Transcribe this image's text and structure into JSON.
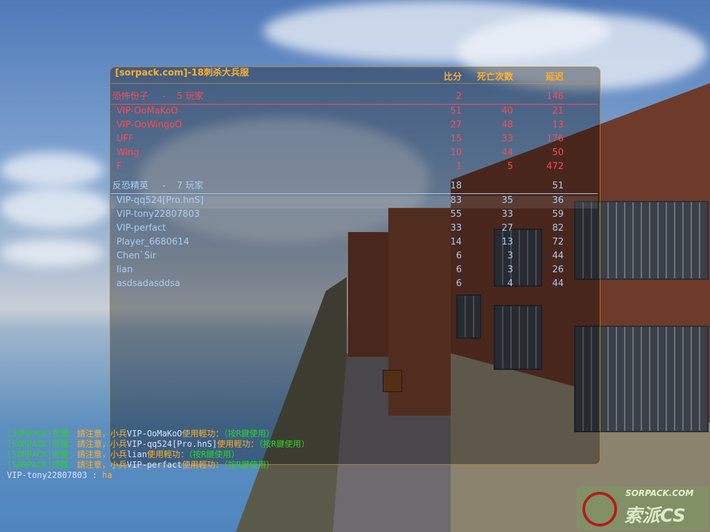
{
  "scoreboard": {
    "title": "[sorpack.com]-18刺杀大兵服",
    "columns": {
      "score": "比分",
      "deaths": "死亡次数",
      "latency": "延迟"
    },
    "teams": [
      {
        "name": "恐怖份子",
        "sep": "-",
        "players_label": "5 玩家",
        "score": "2",
        "latency": "146",
        "color": "#ff4a50",
        "players": [
          {
            "name": "VIP-OoMaKoO",
            "score": "51",
            "deaths": "40",
            "latency": "21"
          },
          {
            "name": "VIP-OoWingoO",
            "score": "27",
            "deaths": "48",
            "latency": "13"
          },
          {
            "name": "UFF",
            "score": "15",
            "deaths": "33",
            "latency": "176"
          },
          {
            "name": "Wing",
            "score": "10",
            "deaths": "44",
            "latency": "50"
          },
          {
            "name": "F",
            "score": "1",
            "deaths": "5",
            "latency": "472"
          }
        ]
      },
      {
        "name": "反恐精英",
        "sep": "-",
        "players_label": "7 玩家",
        "score": "18",
        "latency": "51",
        "color": "#a8cdf5",
        "players": [
          {
            "name": "VIP-qq524[Pro.hnS]",
            "score": "83",
            "deaths": "35",
            "latency": "36"
          },
          {
            "name": "VIP-tony22807803",
            "score": "55",
            "deaths": "33",
            "latency": "59"
          },
          {
            "name": "VIP-perfact",
            "score": "33",
            "deaths": "27",
            "latency": "82"
          },
          {
            "name": "Player_6680614",
            "score": "14",
            "deaths": "13",
            "latency": "72"
          },
          {
            "name": "Chen`Sir",
            "score": "6",
            "deaths": "3",
            "latency": "44"
          },
          {
            "name": "lian",
            "score": "6",
            "deaths": "3",
            "latency": "26"
          },
          {
            "name": "asdsadasddsa",
            "score": "6",
            "deaths": "4",
            "latency": "44"
          }
        ]
      }
    ]
  },
  "chat": {
    "notices": [
      {
        "tag": "[SORPACK]提醒：",
        "msg": "請注意，小兵",
        "player": "VIP-OoMaKoO",
        "action": "使用輕功：",
        "hint": "（按R鍵使用）"
      },
      {
        "tag": "[SORPACK]提醒：",
        "msg": "請注意，小兵",
        "player": "VIP-qq524[Pro.hnS]",
        "action": "使用輕功：",
        "hint": "（按R鍵使用）"
      },
      {
        "tag": "[SORPACK]提醒：",
        "msg": "請注意，小兵",
        "player": "lian",
        "action": "使用輕功：",
        "hint": "（按R鍵使用）"
      },
      {
        "tag": "[SORPACK]提醒：",
        "msg": "請注意，小兵",
        "player": "VIP-perfact",
        "action": "使用輕功：",
        "hint": "（按R鍵使用）"
      }
    ],
    "message": {
      "player": "VIP-tony22807803",
      "sep": " : ",
      "text": "ha"
    }
  },
  "watermark": {
    "site": "SORPACK.COM",
    "brand": "索派CS"
  }
}
